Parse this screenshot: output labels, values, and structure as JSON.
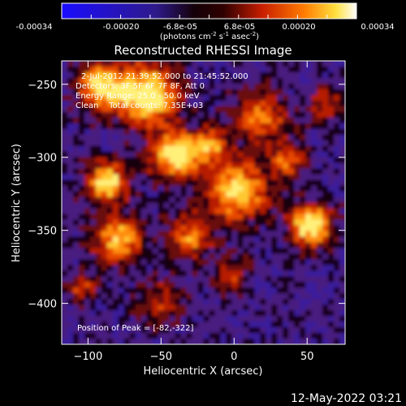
{
  "colorbar": {
    "ticks": [
      "-0.00034",
      "-0.00020",
      "-6.8e-05",
      "6.8e-05",
      "0.00020",
      "0.00034"
    ],
    "unit_main": "(photons cm",
    "unit_sup1": "-2",
    "unit_mid": " s",
    "unit_sup2": "-1",
    "unit_tail": " asec",
    "unit_sup3": "-2",
    "unit_end": ")"
  },
  "title": "Reconstructed RHESSI Image",
  "annotations": {
    "time_range": "2-Jul-2012 21:39:52.000 to 21:45:52.000",
    "detectors": "Detectors: 3F 5F 6F 7F 8F, Att 0",
    "energy": "Energy Range: 25.0 - 50.0 keV",
    "method": "Clean    Total counts: 7.35E+03",
    "peak": "Position of Peak = [-82,-322]"
  },
  "axes": {
    "xlabel": "Heliocentric X (arcsec)",
    "ylabel": "Heliocentric Y (arcsec)",
    "xticks": [
      {
        "value": -100,
        "label": "−100"
      },
      {
        "value": -50,
        "label": "−50"
      },
      {
        "value": 0,
        "label": "0"
      },
      {
        "value": 50,
        "label": "50"
      }
    ],
    "yticks": [
      {
        "value": -250,
        "label": "−250"
      },
      {
        "value": -300,
        "label": "−300"
      },
      {
        "value": -350,
        "label": "−350"
      },
      {
        "value": -400,
        "label": "−400"
      }
    ],
    "xlim": [
      -118,
      76
    ],
    "ylim": [
      -428,
      -234
    ]
  },
  "footer": {
    "timestamp": "12-May-2022 03:21"
  }
}
